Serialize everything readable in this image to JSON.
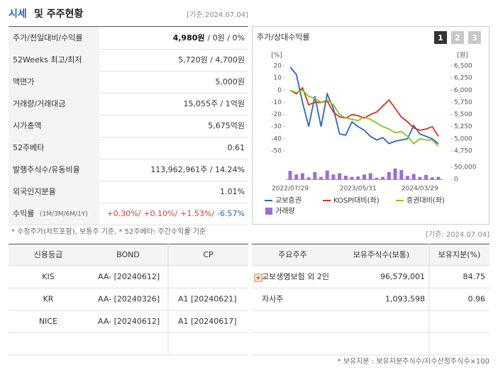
{
  "header": {
    "title_main": "시세",
    "title_rest": "및 주주현황",
    "date": "[기준:2024.07.04]"
  },
  "quote_table": {
    "rows": [
      {
        "label": "주가/전일대비/수익률",
        "value": [
          "4,980원",
          "/ 0원 / 0%"
        ]
      },
      {
        "label": "52Weeks 최고/최저",
        "value": [
          "5,720원 / 4,700원"
        ]
      },
      {
        "label": "액면가",
        "value": [
          "5,000원"
        ]
      },
      {
        "label": "거래량/거래대금",
        "value": [
          "15,055주 / 1억원"
        ]
      },
      {
        "label": "시가총액",
        "value": [
          "5,675억원"
        ]
      },
      {
        "label": "52주베타",
        "value": [
          "0.61"
        ]
      },
      {
        "label": "발행주식수/유동비율",
        "value": [
          "113,962,961주 / 14.24%"
        ]
      },
      {
        "label": "외국인지분율",
        "value": [
          "1.01%"
        ]
      },
      {
        "label": "수익률",
        "label_note": "(1M/3M/6M/1Y)",
        "value": [
          "+0.30%/",
          "+0.10%/",
          "+1.53%/",
          "-6.57%"
        ]
      }
    ]
  },
  "quote_note": "* 수정주가(차트포함), 보통주 기준, * 52주베타: 주간수익률 기준",
  "chart_panel": {
    "title": "주가/상대수익률",
    "buttons": [
      "1",
      "2",
      "3"
    ]
  },
  "chart_data": {
    "type": "line",
    "x": [
      "2022/07/29",
      null,
      null,
      null,
      null,
      null,
      null,
      null,
      null,
      null,
      null,
      "2023/05/31",
      null,
      null,
      null,
      null,
      null,
      null,
      null,
      null,
      null,
      "2024/03/29",
      null,
      null,
      null
    ],
    "y_unit": "[%]",
    "y2_unit": "[원]",
    "ylim": [
      -50,
      20
    ],
    "yticks": [
      -50,
      -40,
      -30,
      -20,
      -10,
      0,
      10,
      20
    ],
    "y2lim": [
      4750,
      6500
    ],
    "y2ticks": [
      {
        "value": 4750,
        "label": "4,750"
      },
      {
        "value": 5000,
        "label": "5,000"
      },
      {
        "value": 5250,
        "label": "5,250"
      },
      {
        "value": 5500,
        "label": "5,500"
      },
      {
        "value": 5750,
        "label": "5,750"
      },
      {
        "value": 6000,
        "label": "6,000"
      },
      {
        "value": 6250,
        "label": "6,250"
      },
      {
        "value": 6500,
        "label": "6,500"
      }
    ],
    "y3lim": [
      0,
      50000
    ],
    "y3ticks": [
      0,
      {
        "value": 50000,
        "label": "50,000"
      }
    ],
    "series": [
      {
        "name": "교보증권",
        "color": "#2a62c9",
        "axis": "y2",
        "values": [
          6475,
          6325,
          5750,
          5250,
          5875,
          5250,
          5925,
          5625,
          5100,
          5075,
          5350,
          5250,
          5175,
          5050,
          4975,
          5025,
          4900,
          4950,
          4975,
          5000,
          5275,
          5100,
          5050,
          5000,
          4900
        ]
      },
      {
        "name": "KOSPI대비(좌)",
        "color": "#d6331f",
        "axis": "y",
        "values": [
          0,
          -3,
          2,
          -12,
          -10,
          -10,
          -9,
          -18,
          -22,
          -23,
          -20,
          -21,
          -23,
          -20,
          -18,
          -13,
          -8,
          -15,
          -22,
          -26,
          -31,
          -33,
          -32,
          -30,
          -38
        ]
      },
      {
        "name": "증권대비(좌)",
        "color": "#8cc21c",
        "axis": "y",
        "values": [
          0,
          -2,
          0,
          -5,
          -7,
          -10,
          -8,
          -12,
          -20,
          -23,
          -24,
          -25,
          -22,
          -24,
          -27,
          -30,
          -32,
          -35,
          -34,
          -38,
          -44,
          -40,
          -41,
          -41,
          -46
        ]
      },
      {
        "name": "거래량",
        "color": "#9b6fd6",
        "axis": "y3",
        "type": "bar",
        "values": [
          35000,
          20000,
          25000,
          8000,
          30000,
          10000,
          36000,
          20000,
          25000,
          15000,
          10000,
          12000,
          20000,
          25000,
          6000,
          10000,
          30000,
          45000,
          38000,
          14000,
          22000,
          10000,
          18000,
          8000,
          10000
        ]
      }
    ]
  },
  "credit_table": {
    "headers": [
      "신용등급",
      "BOND",
      "CP"
    ],
    "rows": [
      [
        "KIS",
        "AA-  [20240612]",
        null
      ],
      [
        "KR",
        "AA-  [20240326]",
        "A1  [20240621]"
      ],
      [
        "NICE",
        "AA-  [20240612]",
        "A1  [20240617]"
      ]
    ]
  },
  "holder_date": "[기준: 2024.07.04]",
  "holder_table": {
    "headers": [
      "주요주주",
      "보유주식수(보통)",
      "보유지분(%)"
    ],
    "rows": [
      [
        "교보생명보험 외 2인",
        "96,579,001",
        "84.75"
      ],
      [
        "자사주",
        "1,093,598",
        "0.96"
      ]
    ]
  },
  "holder_note": "* 보유지분 : 보유지분주식수/지수산정주식수×100"
}
